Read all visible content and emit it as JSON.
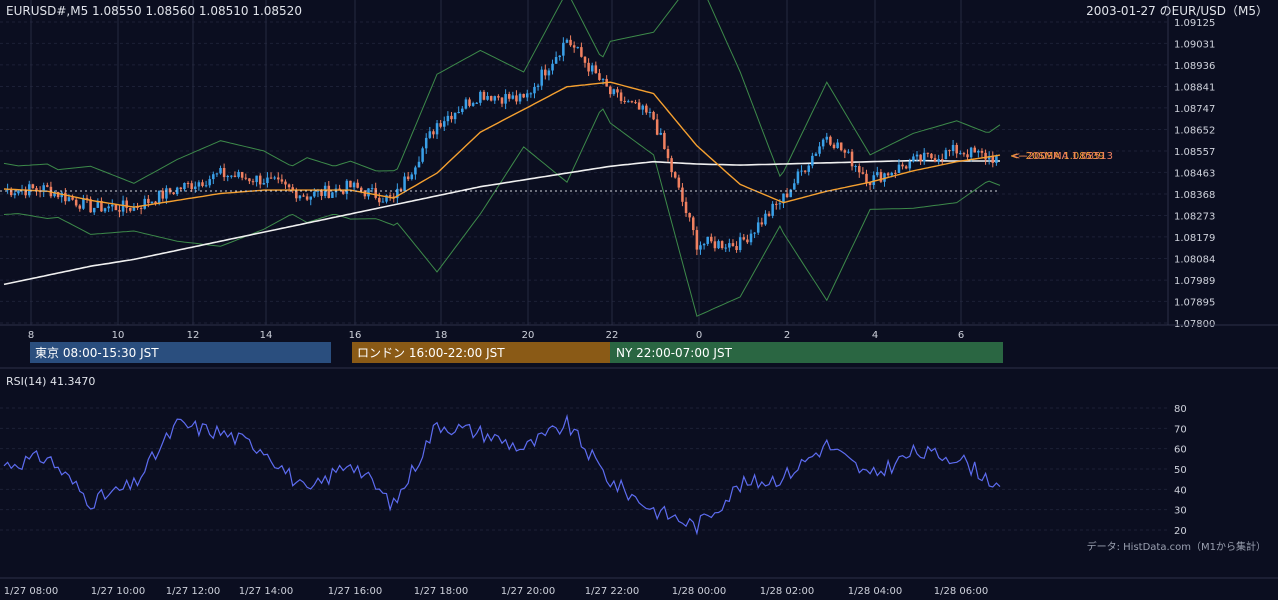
{
  "header": {
    "symbol_info": "EURUSD#,M5 1.08550 1.08560 1.08510 1.08520",
    "date_title": "2003-01-27 のEUR/USD（M5）"
  },
  "price_axis": {
    "labels": [
      "1.09125",
      "1.09031",
      "1.08936",
      "1.08841",
      "1.08747",
      "1.08652",
      "1.08557",
      "1.08463",
      "1.08368",
      "1.08273",
      "1.08179",
      "1.08084",
      "1.07989",
      "1.07895",
      "1.07800"
    ]
  },
  "hour_axis": {
    "labels": [
      "8",
      "10",
      "12",
      "14",
      "16",
      "18",
      "20",
      "22",
      "0",
      "2",
      "4",
      "6"
    ]
  },
  "sessions": [
    {
      "label": "東京 08:00-15:30 JST",
      "color": "#2a4e7e"
    },
    {
      "label": "ロンドン 16:00-22:00 JST",
      "color": "#8a5a16"
    },
    {
      "label": "NY 22:00-07:00 JST",
      "color": "#2a6642"
    }
  ],
  "ma_labels": {
    "sma20": "<--20SMA 1.08539",
    "sma200": "<--200SMA 1.08513"
  },
  "rsi": {
    "title": "RSI(14) 41.3470",
    "axis_labels": [
      "80",
      "70",
      "60",
      "50",
      "40",
      "30",
      "20"
    ]
  },
  "credit": "データ: HistData.com（M1から集計）",
  "time_axis": {
    "labels": [
      "1/27 08:00",
      "1/27 10:00",
      "1/27 12:00",
      "1/27 14:00",
      "1/27 16:00",
      "1/27 18:00",
      "1/27 20:00",
      "1/27 22:00",
      "1/28 00:00",
      "1/28 02:00",
      "1/28 04:00",
      "1/28 06:00"
    ]
  },
  "colors": {
    "background": "#0b0e20",
    "bull": "#3aa0e8",
    "bear": "#f08060",
    "sma20": "#f5a030",
    "sma200": "#f0f0f0",
    "bollinger": "#3d8a4a",
    "rsi_line": "#5d6cf0"
  },
  "chart_data": [
    {
      "type": "line",
      "title": "2003-01-27 のEUR/USD（M5）",
      "ylim": [
        1.078,
        1.09125
      ],
      "x": [
        "08:00",
        "09:00",
        "10:00",
        "11:00",
        "12:00",
        "13:00",
        "14:00",
        "15:00",
        "16:00",
        "17:00",
        "18:00",
        "19:00",
        "20:00",
        "21:00",
        "22:00",
        "23:00",
        "00:00",
        "01:00",
        "02:00",
        "03:00",
        "04:00",
        "05:00",
        "06:00",
        "06:50"
      ],
      "series": [
        {
          "name": "close",
          "values": [
            1.08385,
            1.0839,
            1.0831,
            1.0831,
            1.0839,
            1.08455,
            1.0843,
            1.0836,
            1.084,
            1.0834,
            1.0868,
            1.0881,
            1.0878,
            1.0905,
            1.0881,
            1.087,
            1.0815,
            1.0815,
            1.0835,
            1.0863,
            1.0843,
            1.0851,
            1.0856,
            1.0852
          ]
        },
        {
          "name": "20SMA",
          "values": [
            1.0839,
            1.0838,
            1.0834,
            1.0831,
            1.0834,
            1.0837,
            1.08385,
            1.08385,
            1.08385,
            1.0835,
            1.0846,
            1.0864,
            1.0874,
            1.0884,
            1.0886,
            1.0881,
            1.0858,
            1.0841,
            1.0833,
            1.0838,
            1.0842,
            1.0847,
            1.0851,
            1.08539
          ]
        },
        {
          "name": "200SMA",
          "values": [
            1.0797,
            1.0801,
            1.0805,
            1.0808,
            1.0812,
            1.0816,
            1.082,
            1.0824,
            1.0828,
            1.0832,
            1.0836,
            1.084,
            1.0843,
            1.0846,
            1.0849,
            1.0851,
            1.085,
            1.08495,
            1.085,
            1.08505,
            1.0851,
            1.08515,
            1.08513,
            1.08513
          ]
        }
      ]
    },
    {
      "type": "line",
      "title": "RSI(14) 41.3470",
      "ylim": [
        20,
        80
      ],
      "x": [
        "08:00",
        "09:00",
        "10:00",
        "11:00",
        "12:00",
        "13:00",
        "14:00",
        "15:00",
        "16:00",
        "17:00",
        "18:00",
        "19:00",
        "20:00",
        "21:00",
        "22:00",
        "23:00",
        "00:00",
        "01:00",
        "02:00",
        "03:00",
        "04:00",
        "05:00",
        "06:00",
        "06:50"
      ],
      "series": [
        {
          "name": "RSI(14)",
          "values": [
            52,
            56,
            34,
            42,
            72,
            68,
            60,
            38,
            54,
            32,
            72,
            68,
            60,
            72,
            44,
            30,
            22,
            42,
            46,
            62,
            46,
            58,
            56,
            41.347
          ]
        }
      ]
    }
  ]
}
